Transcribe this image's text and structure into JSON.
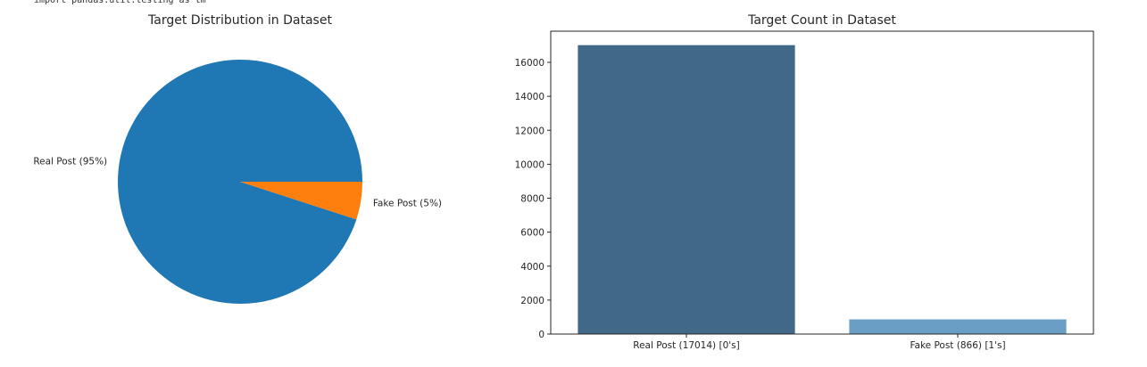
{
  "code_snippet": "import pandas.util.testing as tm",
  "chart_data": [
    {
      "type": "pie",
      "title": "Target Distribution in Dataset",
      "labels": [
        "Real Post (95%)",
        "Fake Post (5%)"
      ],
      "values": [
        95,
        5
      ],
      "colors": [
        "#1f77b4",
        "#ff7f0e"
      ]
    },
    {
      "type": "bar",
      "title": "Target Count in Dataset",
      "categories": [
        "Real Post (17014) [0's]",
        "Fake Post (866) [1's]"
      ],
      "values": [
        17014,
        866
      ],
      "colors": [
        "#416886",
        "#6a9ec5"
      ],
      "ylim": [
        0,
        17000
      ],
      "yticks": [
        0,
        2000,
        4000,
        6000,
        8000,
        10000,
        12000,
        14000,
        16000
      ],
      "grid": false
    }
  ]
}
